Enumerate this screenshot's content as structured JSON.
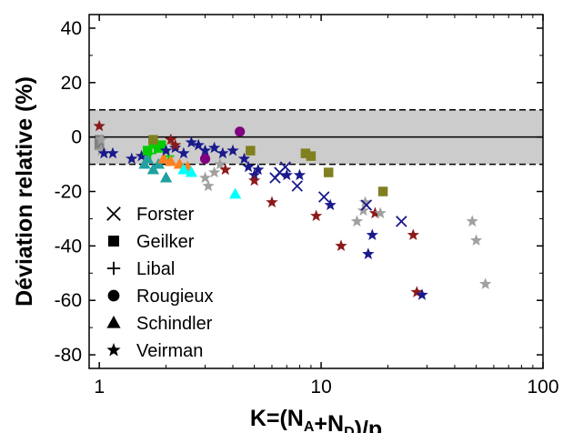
{
  "chart_data": {
    "type": "scatter",
    "title": "",
    "xlabel": "K=(N_A+N_D)/p",
    "ylabel": "Déviation relative (%)",
    "xscale": "log",
    "xlim": [
      0.9,
      100
    ],
    "ylim": [
      -85,
      45
    ],
    "xticks": [
      {
        "value": 1,
        "label": "1"
      },
      {
        "value": 10,
        "label": "10"
      },
      {
        "value": 100,
        "label": "100"
      }
    ],
    "yticks": [
      {
        "value": 40,
        "label": "40"
      },
      {
        "value": 20,
        "label": "20"
      },
      {
        "value": 0,
        "label": "0"
      },
      {
        "value": -20,
        "label": "-20"
      },
      {
        "value": -40,
        "label": "-40"
      },
      {
        "value": -60,
        "label": "-60"
      },
      {
        "value": -80,
        "label": "-80"
      }
    ],
    "band": {
      "low": -10,
      "high": 10,
      "color": "#cccccc"
    },
    "legend_position": "bottom-left",
    "legend": [
      {
        "label": "Forster",
        "marker": "x"
      },
      {
        "label": "Geilker",
        "marker": "square"
      },
      {
        "label": "Libal",
        "marker": "plus"
      },
      {
        "label": "Rougieux",
        "marker": "circle"
      },
      {
        "label": "Schindler",
        "marker": "triangle"
      },
      {
        "label": "Veirman",
        "marker": "star"
      }
    ],
    "points": [
      {
        "x": 1.0,
        "y": -1,
        "marker": "square",
        "color": "#808080"
      },
      {
        "x": 1.0,
        "y": -3,
        "marker": "square",
        "color": "#808080"
      },
      {
        "x": 1.02,
        "y": -5,
        "marker": "star",
        "color": "#a0a0a0"
      },
      {
        "x": 1.0,
        "y": 4,
        "marker": "star",
        "color": "#8b1a1a"
      },
      {
        "x": 1.02,
        "y": -1,
        "marker": "star",
        "color": "#a0a0a0"
      },
      {
        "x": 1.05,
        "y": -6,
        "marker": "star",
        "color": "#1a1a8c"
      },
      {
        "x": 1.15,
        "y": -6,
        "marker": "star",
        "color": "#1a1a8c"
      },
      {
        "x": 1.4,
        "y": -8,
        "marker": "star",
        "color": "#1a1a8c"
      },
      {
        "x": 1.55,
        "y": -7,
        "marker": "star",
        "color": "#1a1a8c"
      },
      {
        "x": 1.6,
        "y": -10,
        "marker": "triangle",
        "color": "#20a0a0"
      },
      {
        "x": 1.65,
        "y": -8,
        "marker": "triangle",
        "color": "#20a0a0"
      },
      {
        "x": 1.75,
        "y": -12,
        "marker": "triangle",
        "color": "#20a0a0"
      },
      {
        "x": 1.85,
        "y": -10,
        "marker": "triangle",
        "color": "#20a0a0"
      },
      {
        "x": 2.0,
        "y": -15,
        "marker": "triangle",
        "color": "#20a0a0"
      },
      {
        "x": 1.65,
        "y": -5,
        "marker": "square",
        "color": "#00cc00"
      },
      {
        "x": 1.75,
        "y": -2,
        "marker": "square",
        "color": "#00cc00"
      },
      {
        "x": 1.85,
        "y": -4,
        "marker": "square",
        "color": "#00cc00"
      },
      {
        "x": 1.9,
        "y": -3,
        "marker": "square",
        "color": "#00cc00"
      },
      {
        "x": 1.7,
        "y": -6,
        "marker": "plus",
        "color": "#00cc00"
      },
      {
        "x": 1.8,
        "y": -4,
        "marker": "plus",
        "color": "#00cc00"
      },
      {
        "x": 1.95,
        "y": -5,
        "marker": "plus",
        "color": "#00cc00"
      },
      {
        "x": 2.05,
        "y": -7,
        "marker": "plus",
        "color": "#00cc00"
      },
      {
        "x": 1.75,
        "y": -1,
        "marker": "square",
        "color": "#808020"
      },
      {
        "x": 1.95,
        "y": -8,
        "marker": "triangle",
        "color": "#ff8020"
      },
      {
        "x": 2.1,
        "y": -9,
        "marker": "triangle",
        "color": "#ff8020"
      },
      {
        "x": 2.3,
        "y": -10,
        "marker": "triangle",
        "color": "#ff8020"
      },
      {
        "x": 2.5,
        "y": -11,
        "marker": "triangle",
        "color": "#ff8020"
      },
      {
        "x": 2.4,
        "y": -12,
        "marker": "triangle",
        "color": "#00ffff"
      },
      {
        "x": 2.6,
        "y": -13,
        "marker": "triangle",
        "color": "#00ffff"
      },
      {
        "x": 2.0,
        "y": -5,
        "marker": "star",
        "color": "#1a1a8c"
      },
      {
        "x": 2.2,
        "y": -4,
        "marker": "star",
        "color": "#1a1a8c"
      },
      {
        "x": 2.4,
        "y": -6,
        "marker": "star",
        "color": "#1a1a8c"
      },
      {
        "x": 2.6,
        "y": -2,
        "marker": "star",
        "color": "#1a1a8c"
      },
      {
        "x": 2.8,
        "y": -3,
        "marker": "star",
        "color": "#1a1a8c"
      },
      {
        "x": 3.0,
        "y": -5,
        "marker": "star",
        "color": "#1a1a8c"
      },
      {
        "x": 3.3,
        "y": -4,
        "marker": "star",
        "color": "#1a1a8c"
      },
      {
        "x": 3.6,
        "y": -6,
        "marker": "star",
        "color": "#1a1a8c"
      },
      {
        "x": 4.0,
        "y": -5,
        "marker": "star",
        "color": "#1a1a8c"
      },
      {
        "x": 2.1,
        "y": -1,
        "marker": "star",
        "color": "#8b1a1a"
      },
      {
        "x": 2.2,
        "y": -3,
        "marker": "star",
        "color": "#8b1a1a"
      },
      {
        "x": 3.0,
        "y": -8,
        "marker": "circle",
        "color": "#800080"
      },
      {
        "x": 4.3,
        "y": 2,
        "marker": "circle",
        "color": "#800080"
      },
      {
        "x": 3.0,
        "y": -15,
        "marker": "star",
        "color": "#a0a0a0"
      },
      {
        "x": 3.1,
        "y": -18,
        "marker": "star",
        "color": "#a0a0a0"
      },
      {
        "x": 3.3,
        "y": -13,
        "marker": "star",
        "color": "#a0a0a0"
      },
      {
        "x": 3.5,
        "y": -10,
        "marker": "star",
        "color": "#a0a0a0"
      },
      {
        "x": 3.7,
        "y": -12,
        "marker": "star",
        "color": "#8b1a1a"
      },
      {
        "x": 4.1,
        "y": -21,
        "marker": "triangle",
        "color": "#00ffff"
      },
      {
        "x": 4.5,
        "y": -8,
        "marker": "star",
        "color": "#1a1a8c"
      },
      {
        "x": 4.7,
        "y": -11,
        "marker": "star",
        "color": "#1a1a8c"
      },
      {
        "x": 5.0,
        "y": -14,
        "marker": "star",
        "color": "#1a1a8c"
      },
      {
        "x": 5.2,
        "y": -12,
        "marker": "star",
        "color": "#1a1a8c"
      },
      {
        "x": 5.0,
        "y": -16,
        "marker": "star",
        "color": "#8b1a1a"
      },
      {
        "x": 4.8,
        "y": -5,
        "marker": "square",
        "color": "#808020"
      },
      {
        "x": 6.0,
        "y": -24,
        "marker": "star",
        "color": "#8b1a1a"
      },
      {
        "x": 6.2,
        "y": -15,
        "marker": "x",
        "color": "#1a1a8c"
      },
      {
        "x": 6.5,
        "y": -13,
        "marker": "x",
        "color": "#1a1a8c"
      },
      {
        "x": 6.9,
        "y": -11,
        "marker": "x",
        "color": "#1a1a8c"
      },
      {
        "x": 7.0,
        "y": -14,
        "marker": "star",
        "color": "#1a1a8c"
      },
      {
        "x": 7.8,
        "y": -18,
        "marker": "x",
        "color": "#1a1a8c"
      },
      {
        "x": 8.0,
        "y": -14,
        "marker": "star",
        "color": "#1a1a8c"
      },
      {
        "x": 8.5,
        "y": -6,
        "marker": "square",
        "color": "#808020"
      },
      {
        "x": 9.0,
        "y": -7,
        "marker": "square",
        "color": "#808020"
      },
      {
        "x": 9.5,
        "y": -29,
        "marker": "star",
        "color": "#8b1a1a"
      },
      {
        "x": 10.3,
        "y": -22,
        "marker": "x",
        "color": "#1a1a8c"
      },
      {
        "x": 10.8,
        "y": -13,
        "marker": "square",
        "color": "#808020"
      },
      {
        "x": 11.0,
        "y": -25,
        "marker": "star",
        "color": "#1a1a8c"
      },
      {
        "x": 12.3,
        "y": -40,
        "marker": "star",
        "color": "#8b1a1a"
      },
      {
        "x": 14.5,
        "y": -31,
        "marker": "star",
        "color": "#a0a0a0"
      },
      {
        "x": 15.5,
        "y": -27,
        "marker": "star",
        "color": "#a0a0a0"
      },
      {
        "x": 15.8,
        "y": -24,
        "marker": "star",
        "color": "#a0a0a0"
      },
      {
        "x": 16.0,
        "y": -25,
        "marker": "x",
        "color": "#1a1a8c"
      },
      {
        "x": 16.3,
        "y": -43,
        "marker": "star",
        "color": "#1a1a8c"
      },
      {
        "x": 17.0,
        "y": -36,
        "marker": "star",
        "color": "#1a1a8c"
      },
      {
        "x": 17.5,
        "y": -28,
        "marker": "star",
        "color": "#8b1a1a"
      },
      {
        "x": 18.5,
        "y": -28,
        "marker": "star",
        "color": "#a0a0a0"
      },
      {
        "x": 19.0,
        "y": -20,
        "marker": "square",
        "color": "#808020"
      },
      {
        "x": 23.0,
        "y": -31,
        "marker": "x",
        "color": "#1a1a8c"
      },
      {
        "x": 26.0,
        "y": -36,
        "marker": "star",
        "color": "#8b1a1a"
      },
      {
        "x": 27.0,
        "y": -57,
        "marker": "star",
        "color": "#8b1a1a"
      },
      {
        "x": 28.5,
        "y": -58,
        "marker": "star",
        "color": "#1a1a8c"
      },
      {
        "x": 48.0,
        "y": -31,
        "marker": "star",
        "color": "#a0a0a0"
      },
      {
        "x": 50.0,
        "y": -38,
        "marker": "star",
        "color": "#a0a0a0"
      },
      {
        "x": 55.0,
        "y": -54,
        "marker": "star",
        "color": "#a0a0a0"
      }
    ]
  }
}
